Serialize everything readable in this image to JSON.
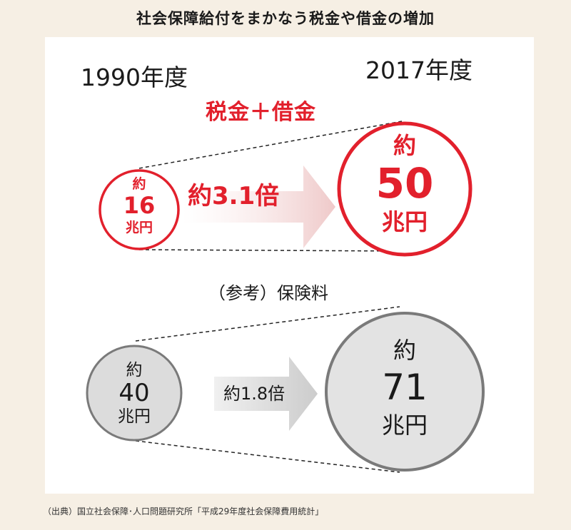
{
  "title": "社会保障給付をまかなう税金や借金の増加",
  "years": {
    "start": "1990年度",
    "end": "2017年度"
  },
  "tax_debt": {
    "label": "税金＋借金",
    "before": {
      "prefix": "約",
      "value": "16",
      "unit": "兆円"
    },
    "after": {
      "prefix": "約",
      "value": "50",
      "unit": "兆円"
    },
    "ratio": "約3.1倍"
  },
  "premium": {
    "label": "（参考）保険料",
    "before": {
      "prefix": "約",
      "value": "40",
      "unit": "兆円"
    },
    "after": {
      "prefix": "約",
      "value": "71",
      "unit": "兆円"
    },
    "ratio": "約1.8倍"
  },
  "source": "（出典）国立社会保障･人口問題研究所「平成29年度社会保障費用統計」",
  "colors": {
    "accent_red": "#e2202c",
    "arrow_pink": "#f2d4d4",
    "arrow_grey": "#d6d6d6",
    "circle_grey": "#dddddd",
    "ring_grey": "#7a7a7a",
    "background": "#f6efe4"
  }
}
